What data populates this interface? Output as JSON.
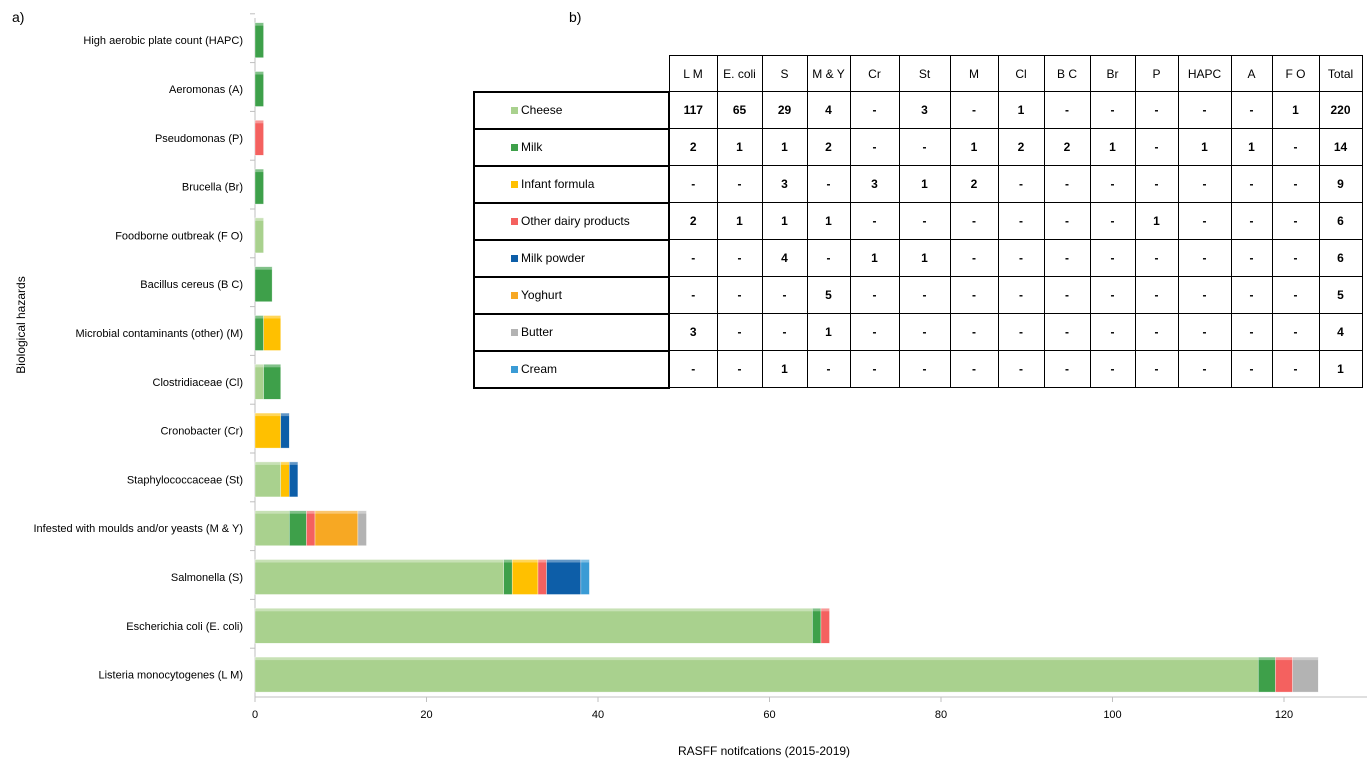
{
  "panels": {
    "a": "a)",
    "b": "b)"
  },
  "chart_data": {
    "type": "bar",
    "orientation": "horizontal",
    "stacked": true,
    "title": "",
    "xlabel": "RASFF notifcations (2015-2019)",
    "ylabel": "Biological hazards",
    "xlim": [
      0,
      130
    ],
    "xticks": [
      0,
      20,
      40,
      60,
      80,
      100,
      120
    ],
    "grid": false,
    "categories": [
      "Listeria monocytogenes (L M)",
      "Escherichia coli (E. coli)",
      "Salmonella (S)",
      "Infested with moulds and/or yeasts (M & Y)",
      "Staphylococcaceae (St)",
      "Cronobacter (Cr)",
      "Clostridiaceae (Cl)",
      "Microbial contaminants (other) (M)",
      "Bacillus cereus (B C)",
      "Foodborne outbreak (F O)",
      "Brucella (Br)",
      "Pseudomonas (P)",
      "Aeromonas (A)",
      "High aerobic plate count (HAPC)"
    ],
    "series": [
      {
        "name": "Cheese",
        "color": "#a9d18e",
        "values": [
          117,
          65,
          29,
          4,
          3,
          0,
          1,
          0,
          0,
          1,
          0,
          0,
          0,
          0
        ]
      },
      {
        "name": "Milk",
        "color": "#3ea04a",
        "values": [
          2,
          1,
          1,
          2,
          0,
          0,
          2,
          1,
          2,
          0,
          1,
          0,
          1,
          1
        ]
      },
      {
        "name": "Infant formula",
        "color": "#ffc000",
        "values": [
          0,
          0,
          3,
          0,
          1,
          3,
          0,
          2,
          0,
          0,
          0,
          0,
          0,
          0
        ]
      },
      {
        "name": "Other dairy products",
        "color": "#f4615f",
        "values": [
          2,
          1,
          1,
          1,
          0,
          0,
          0,
          0,
          0,
          0,
          0,
          1,
          0,
          0
        ]
      },
      {
        "name": "Milk powder",
        "color": "#0d5ea8",
        "values": [
          0,
          0,
          4,
          0,
          1,
          1,
          0,
          0,
          0,
          0,
          0,
          0,
          0,
          0
        ]
      },
      {
        "name": "Yoghurt",
        "color": "#f7a823",
        "values": [
          0,
          0,
          0,
          5,
          0,
          0,
          0,
          0,
          0,
          0,
          0,
          0,
          0,
          0
        ]
      },
      {
        "name": "Butter",
        "color": "#b3b3b3",
        "values": [
          3,
          0,
          0,
          1,
          0,
          0,
          0,
          0,
          0,
          0,
          0,
          0,
          0,
          0
        ]
      },
      {
        "name": "Cream",
        "color": "#3a9bd5",
        "values": [
          0,
          0,
          1,
          0,
          0,
          0,
          0,
          0,
          0,
          0,
          0,
          0,
          0,
          0
        ]
      }
    ]
  },
  "table": {
    "columns": [
      "L M",
      "E. coli",
      "S",
      "M & Y",
      "Cr",
      "St",
      "M",
      "Cl",
      "B C",
      "Br",
      "P",
      "HAPC",
      "A",
      "F O",
      "Total"
    ],
    "rows": [
      {
        "label": "Cheese",
        "color": "#a9d18e",
        "cells": [
          "117",
          "65",
          "29",
          "4",
          "-",
          "3",
          "-",
          "1",
          "-",
          "-",
          "-",
          "-",
          "-",
          "1",
          "220"
        ]
      },
      {
        "label": "Milk",
        "color": "#3ea04a",
        "cells": [
          "2",
          "1",
          "1",
          "2",
          "-",
          "-",
          "1",
          "2",
          "2",
          "1",
          "-",
          "1",
          "1",
          "-",
          "14"
        ]
      },
      {
        "label": "Infant formula",
        "color": "#ffc000",
        "cells": [
          "-",
          "-",
          "3",
          "-",
          "3",
          "1",
          "2",
          "-",
          "-",
          "-",
          "-",
          "-",
          "-",
          "-",
          "9"
        ]
      },
      {
        "label": "Other dairy products",
        "color": "#f4615f",
        "cells": [
          "2",
          "1",
          "1",
          "1",
          "-",
          "-",
          "-",
          "-",
          "-",
          "-",
          "1",
          "-",
          "-",
          "-",
          "6"
        ]
      },
      {
        "label": "Milk powder",
        "color": "#0d5ea8",
        "cells": [
          "-",
          "-",
          "4",
          "-",
          "1",
          "1",
          "-",
          "-",
          "-",
          "-",
          "-",
          "-",
          "-",
          "-",
          "6"
        ]
      },
      {
        "label": "Yoghurt",
        "color": "#f7a823",
        "cells": [
          "-",
          "-",
          "-",
          "5",
          "-",
          "-",
          "-",
          "-",
          "-",
          "-",
          "-",
          "-",
          "-",
          "-",
          "5"
        ]
      },
      {
        "label": "Butter",
        "color": "#b3b3b3",
        "cells": [
          "3",
          "-",
          "-",
          "1",
          "-",
          "-",
          "-",
          "-",
          "-",
          "-",
          "-",
          "-",
          "-",
          "-",
          "4"
        ]
      },
      {
        "label": "Cream",
        "color": "#3a9bd5",
        "cells": [
          "-",
          "-",
          "1",
          "-",
          "-",
          "-",
          "-",
          "-",
          "-",
          "-",
          "-",
          "-",
          "-",
          "-",
          "1"
        ]
      }
    ]
  }
}
